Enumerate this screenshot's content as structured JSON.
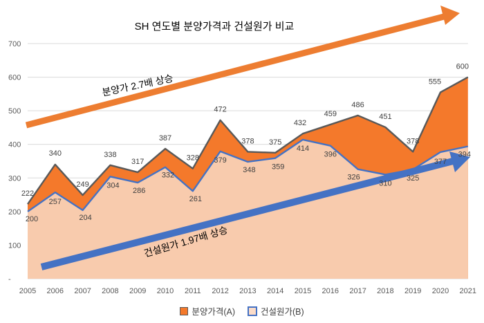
{
  "chart_data": {
    "type": "area",
    "title": "SH 연도별 분양가격과 건설원가 비교",
    "x": [
      "2005",
      "2006",
      "2007",
      "2008",
      "2009",
      "2010",
      "2011",
      "2012",
      "2013",
      "2014",
      "2015",
      "2016",
      "2017",
      "2018",
      "2019",
      "2020",
      "2021"
    ],
    "ylim": [
      0,
      700
    ],
    "yticks": [
      "-",
      "100",
      "200",
      "300",
      "400",
      "500",
      "600",
      "700"
    ],
    "grid": true,
    "legend_position": "bottom",
    "series": [
      {
        "name": "분양가격(A)",
        "values": [
          222,
          340,
          249,
          338,
          317,
          387,
          328,
          472,
          378,
          375,
          432,
          459,
          486,
          451,
          378,
          555,
          600
        ],
        "color": "#F4792B"
      },
      {
        "name": "건설원가(B)",
        "values": [
          200,
          257,
          204,
          304,
          286,
          332,
          261,
          379,
          348,
          359,
          414,
          396,
          326,
          310,
          325,
          377,
          394
        ],
        "color": "#4472C4"
      }
    ],
    "annotations": [
      {
        "text": "분양가 2.7배 상승",
        "color": "#ED7D31"
      },
      {
        "text": "건설원가 1.97배 상승",
        "color": "#4472C4"
      }
    ]
  }
}
